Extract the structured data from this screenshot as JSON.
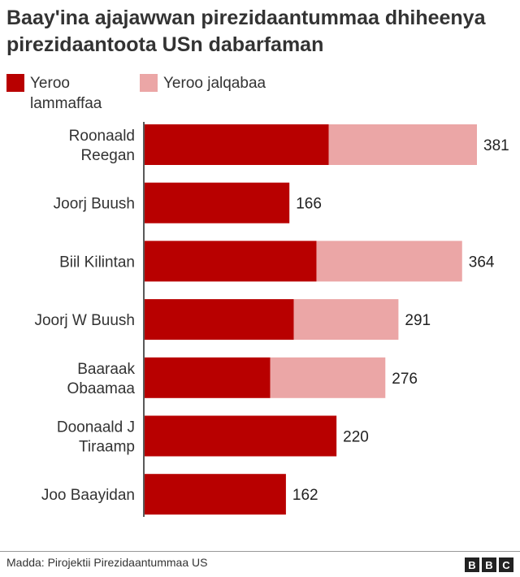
{
  "chart_data": {
    "type": "bar",
    "orientation": "horizontal",
    "stacked": true,
    "title": "Baay'ina ajajawwan pirezidaantummaa dhiheenya pirezidaantoota USn dabarfaman",
    "categories": [
      "Roonaald Reegan",
      "Joorj Buush",
      "Biil Kilintan",
      "Joorj W Buush",
      "Baaraak Obaamaa",
      "Doonaald J Tiraamp",
      "Joo Baayidan"
    ],
    "series": [
      {
        "name": "Yeroo lammaffaa",
        "color": "#b80000",
        "values": [
          211,
          166,
          197,
          171,
          144,
          220,
          162
        ]
      },
      {
        "name": "Yeroo jalqabaa",
        "color": "#eba6a6",
        "values": [
          170,
          0,
          167,
          120,
          132,
          0,
          0
        ]
      }
    ],
    "totals": [
      "381",
      "166",
      "364",
      "291",
      "276",
      "220",
      "162"
    ],
    "xlim": [
      0,
      381
    ],
    "grid": false,
    "legend_position": "top-left"
  },
  "source": "Madda: Pirojektii Pirezidaantummaa US",
  "logo": "BBC"
}
